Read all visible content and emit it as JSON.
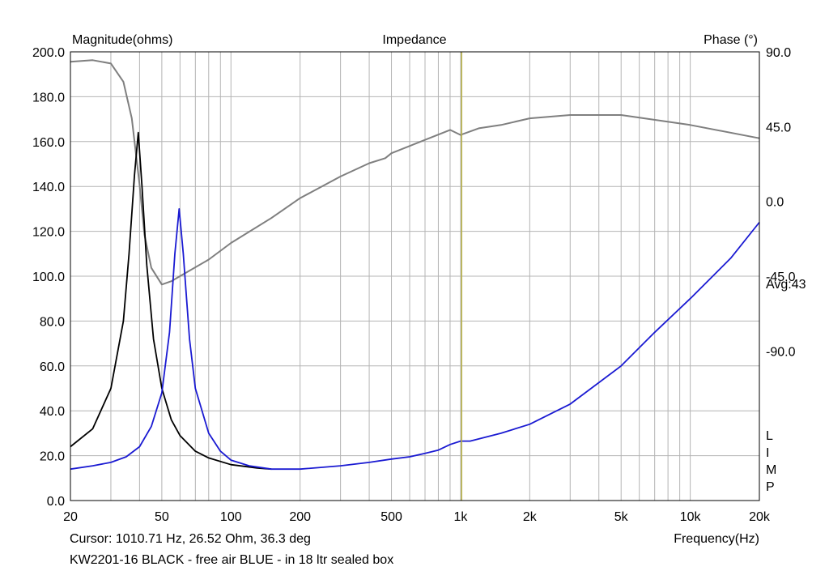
{
  "chart_data": {
    "type": "line",
    "title": "Impedance",
    "ylabel_left": "Magnitude(ohms)",
    "ylabel_right": "Phase (°)",
    "xlabel": "Frequency(Hz)",
    "x_scale": "log",
    "xlim": [
      20,
      20000
    ],
    "ylim_left": [
      0,
      200
    ],
    "ylim_right": [
      -180,
      90
    ],
    "x_tick_labels": [
      {
        "value": 20,
        "label": "20"
      },
      {
        "value": 50,
        "label": "50"
      },
      {
        "value": 100,
        "label": "100"
      },
      {
        "value": 200,
        "label": "200"
      },
      {
        "value": 500,
        "label": "500"
      },
      {
        "value": 1000,
        "label": "1k"
      },
      {
        "value": 2000,
        "label": "2k"
      },
      {
        "value": 5000,
        "label": "5k"
      },
      {
        "value": 10000,
        "label": "10k"
      },
      {
        "value": 20000,
        "label": "20k"
      }
    ],
    "y_left_ticks": [
      {
        "value": 0,
        "label": "0.0"
      },
      {
        "value": 20,
        "label": "20.0"
      },
      {
        "value": 40,
        "label": "40.0"
      },
      {
        "value": 60,
        "label": "60.0"
      },
      {
        "value": 80,
        "label": "80.0"
      },
      {
        "value": 100,
        "label": "100.0"
      },
      {
        "value": 120,
        "label": "120.0"
      },
      {
        "value": 140,
        "label": "140.0"
      },
      {
        "value": 160,
        "label": "160.0"
      },
      {
        "value": 180,
        "label": "180.0"
      },
      {
        "value": 200,
        "label": "200.0"
      }
    ],
    "y_right_ticks": [
      {
        "value": 90,
        "label": "90.0"
      },
      {
        "value": 45,
        "label": "45.0"
      },
      {
        "value": 0,
        "label": "0.0"
      },
      {
        "value": -45,
        "label": "-45.0"
      },
      {
        "value": -90,
        "label": "-90.0"
      }
    ],
    "avg_label": "Avg:43",
    "limp_label": [
      "L",
      "I",
      "M",
      "P"
    ],
    "cursor_text": "Cursor: 1010.71 Hz, 26.52 Ohm, 36.3 deg",
    "caption": "KW2201-16 BLACK - free air BLUE - in 18 ltr sealed box",
    "cursor_x": 1010.71,
    "grid": true,
    "colors": {
      "grid": "#b4b4b4",
      "black_series": "#000000",
      "blue_series": "#1a1ad2",
      "phase": "#7f7f7f",
      "cursor": "#b9b246"
    },
    "series": [
      {
        "color": "black",
        "axis": "left",
        "points": [
          [
            20,
            24
          ],
          [
            25,
            32
          ],
          [
            30,
            50
          ],
          [
            34,
            80
          ],
          [
            36,
            110
          ],
          [
            38,
            145
          ],
          [
            39.5,
            164
          ],
          [
            41,
            140
          ],
          [
            43,
            105
          ],
          [
            46,
            72
          ],
          [
            50,
            50
          ],
          [
            55,
            36
          ],
          [
            60,
            29
          ],
          [
            70,
            22
          ],
          [
            80,
            19
          ],
          [
            100,
            16
          ],
          [
            130,
            14.5
          ],
          [
            150,
            14
          ]
        ]
      },
      {
        "color": "blue",
        "axis": "left",
        "points": [
          [
            20,
            14
          ],
          [
            25,
            15.5
          ],
          [
            30,
            17
          ],
          [
            35,
            19.5
          ],
          [
            40,
            24
          ],
          [
            45,
            33
          ],
          [
            50,
            48
          ],
          [
            54,
            75
          ],
          [
            57,
            110
          ],
          [
            59.5,
            130
          ],
          [
            62,
            110
          ],
          [
            66,
            72
          ],
          [
            70,
            50
          ],
          [
            80,
            30
          ],
          [
            90,
            22
          ],
          [
            100,
            18
          ],
          [
            120,
            15.5
          ],
          [
            150,
            14
          ],
          [
            200,
            14
          ],
          [
            300,
            15.5
          ],
          [
            400,
            17
          ],
          [
            500,
            18.5
          ],
          [
            600,
            19.5
          ],
          [
            700,
            21
          ],
          [
            800,
            22.5
          ],
          [
            900,
            25
          ],
          [
            1000,
            26.5
          ],
          [
            1100,
            26.5
          ],
          [
            1500,
            30
          ],
          [
            2000,
            34
          ],
          [
            3000,
            43
          ],
          [
            5000,
            60
          ],
          [
            7000,
            75
          ],
          [
            10000,
            90
          ],
          [
            15000,
            108
          ],
          [
            20000,
            124
          ]
        ]
      },
      {
        "color": "gray",
        "axis": "right",
        "name": "phase",
        "points": [
          [
            20,
            84
          ],
          [
            25,
            85
          ],
          [
            30,
            83
          ],
          [
            34,
            72
          ],
          [
            37,
            50
          ],
          [
            40,
            10
          ],
          [
            42,
            -20
          ],
          [
            45,
            -40
          ],
          [
            50,
            -50
          ],
          [
            55,
            -48
          ],
          [
            60,
            -45
          ],
          [
            80,
            -35
          ],
          [
            100,
            -25
          ],
          [
            150,
            -10
          ],
          [
            200,
            2
          ],
          [
            300,
            15
          ],
          [
            400,
            23
          ],
          [
            470,
            26
          ],
          [
            500,
            29
          ],
          [
            700,
            37
          ],
          [
            900,
            43
          ],
          [
            1000,
            40
          ],
          [
            1200,
            44
          ],
          [
            1500,
            46
          ],
          [
            2000,
            50
          ],
          [
            3000,
            52
          ],
          [
            5000,
            52
          ],
          [
            10000,
            46
          ],
          [
            20000,
            38
          ]
        ]
      }
    ]
  }
}
